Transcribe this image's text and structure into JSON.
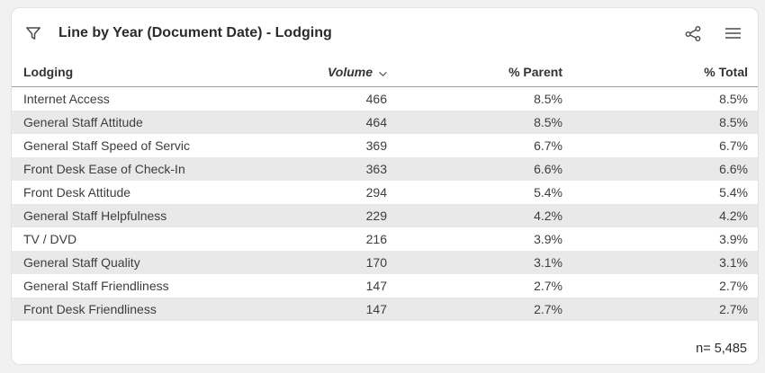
{
  "header": {
    "title": "Line by Year (Document Date) - Lodging",
    "icons": [
      "filter-icon",
      "share-icon",
      "menu-icon"
    ]
  },
  "table": {
    "columns": [
      "Lodging",
      "Volume",
      "% Parent",
      "% Total"
    ],
    "sort": {
      "column": "Volume",
      "direction": "descending",
      "icon": "sort-descending-icon"
    },
    "rows": [
      {
        "label": "Internet Access",
        "volume": "466",
        "pct_parent": "8.5%",
        "pct_total": "8.5%"
      },
      {
        "label": "General Staff Attitude",
        "volume": "464",
        "pct_parent": "8.5%",
        "pct_total": "8.5%"
      },
      {
        "label": "General Staff Speed of Servic",
        "volume": "369",
        "pct_parent": "6.7%",
        "pct_total": "6.7%"
      },
      {
        "label": "Front Desk Ease of Check-In",
        "volume": "363",
        "pct_parent": "6.6%",
        "pct_total": "6.6%"
      },
      {
        "label": "Front Desk Attitude",
        "volume": "294",
        "pct_parent": "5.4%",
        "pct_total": "5.4%"
      },
      {
        "label": "General Staff Helpfulness",
        "volume": "229",
        "pct_parent": "4.2%",
        "pct_total": "4.2%"
      },
      {
        "label": "TV / DVD",
        "volume": "216",
        "pct_parent": "3.9%",
        "pct_total": "3.9%"
      },
      {
        "label": "General Staff Quality",
        "volume": "170",
        "pct_parent": "3.1%",
        "pct_total": "3.1%"
      },
      {
        "label": "General Staff Friendliness",
        "volume": "147",
        "pct_parent": "2.7%",
        "pct_total": "2.7%"
      },
      {
        "label": "Front Desk Friendliness",
        "volume": "147",
        "pct_parent": "2.7%",
        "pct_total": "2.7%"
      }
    ],
    "footer": "n= 5,485"
  },
  "colors": {
    "page_bg": "#f1f1f2",
    "panel_bg": "#ffffff",
    "panel_border": "#e2e2e4",
    "stripe": "#e9e9e9",
    "divider": "#9e9e9e",
    "title_text": "#2b2b2b",
    "header_text": "#333333",
    "row_text": "#3d3d3d",
    "icon": "#4a4a4a"
  }
}
